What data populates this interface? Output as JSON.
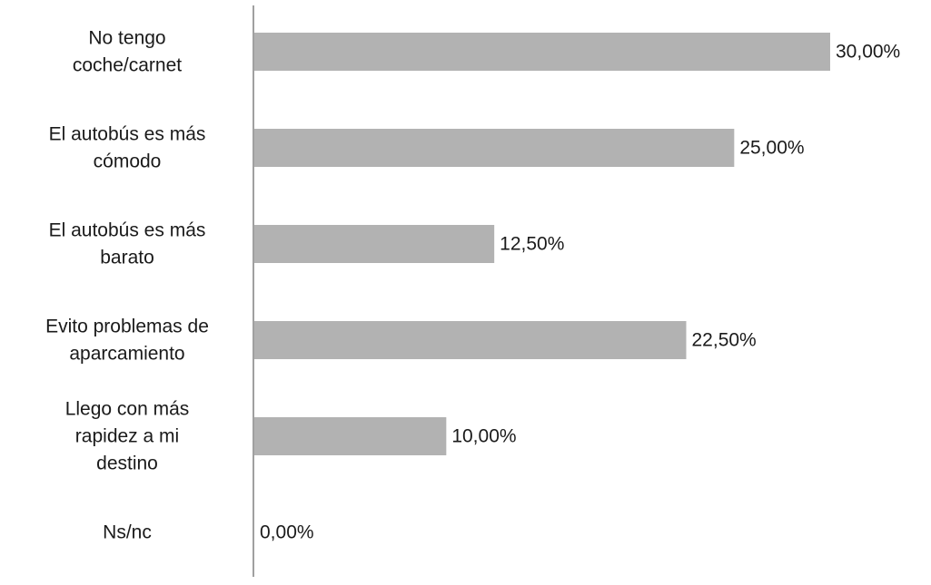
{
  "chart_data": {
    "type": "bar",
    "orientation": "horizontal",
    "categories": [
      [
        "No tengo",
        "coche/carnet"
      ],
      [
        "El autobús es más",
        "cómodo"
      ],
      [
        "El autobús es más",
        "barato"
      ],
      [
        "Evito problemas de",
        "aparcamiento"
      ],
      [
        "Llego con más",
        "rapidez a mi",
        "destino"
      ],
      [
        "Ns/nc"
      ]
    ],
    "values": [
      30.0,
      25.0,
      12.5,
      22.5,
      10.0,
      0.0
    ],
    "data_labels": [
      "30,00%",
      "25,00%",
      "12,50%",
      "22,50%",
      "10,00%",
      "0,00%"
    ],
    "xlim": [
      0,
      30
    ],
    "bar_color": "#b2b2b2",
    "axis_color": "#808080",
    "grid": false,
    "legend": "none"
  }
}
